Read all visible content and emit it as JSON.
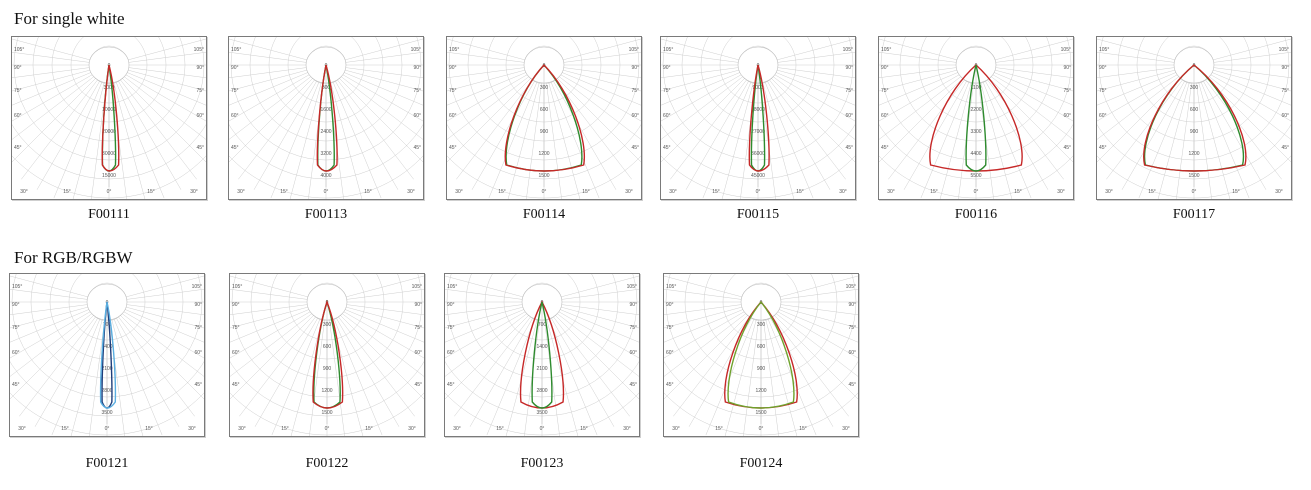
{
  "sections": [
    {
      "title": "For single white",
      "diagrams": [
        {
          "code": "F00111",
          "values": [
            "0",
            "3000",
            "10000",
            "20000",
            "30000",
            "15000"
          ],
          "curves": [
            {
              "color": "#2e8b2e",
              "w": 0.08,
              "sh": 0
            },
            {
              "color": "#c62828",
              "w": 0.1,
              "sh": 1.5
            }
          ]
        },
        {
          "code": "F00113",
          "values": [
            "0",
            "800",
            "1600",
            "2400",
            "3200",
            "4000"
          ],
          "curves": [
            {
              "color": "#2e8b2e",
              "w": 0.1,
              "sh": 0
            },
            {
              "color": "#c62828",
              "w": 0.12,
              "sh": 1.2
            }
          ]
        },
        {
          "code": "F00114",
          "values": [
            "0",
            "300",
            "600",
            "900",
            "1200",
            "1500"
          ],
          "curves": [
            {
              "color": "#2e8b2e",
              "w": 0.46,
              "sh": 0
            },
            {
              "color": "#c62828",
              "w": 0.48,
              "sh": 0.8
            }
          ]
        },
        {
          "code": "F00115",
          "values": [
            "0",
            "9000",
            "18000",
            "27000",
            "36000",
            "45000"
          ],
          "curves": [
            {
              "color": "#2e8b2e",
              "w": 0.08,
              "sh": 0
            },
            {
              "color": "#c62828",
              "w": 0.12,
              "sh": 1.2
            }
          ]
        },
        {
          "code": "F00116",
          "values": [
            "0",
            "1100",
            "2200",
            "3300",
            "4400",
            "5500"
          ],
          "curves": [
            {
              "color": "#c62828",
              "w": 0.56,
              "sh": 0
            },
            {
              "color": "#2e8b2e",
              "w": 0.12,
              "sh": 0
            }
          ]
        },
        {
          "code": "F00117",
          "values": [
            "0",
            "300",
            "600",
            "900",
            "1200",
            "1500"
          ],
          "curves": [
            {
              "color": "#2e8b2e",
              "w": 0.6,
              "sh": 0
            },
            {
              "color": "#c62828",
              "w": 0.62,
              "sh": 0.8
            }
          ]
        }
      ]
    },
    {
      "title": "For RGB/RGBW",
      "diagrams": [
        {
          "code": "F00121",
          "values": [
            "0",
            "700",
            "1400",
            "2100",
            "2800",
            "3500"
          ],
          "curves": [
            {
              "color": "#1e3d7a",
              "w": 0.06,
              "sh": 0
            },
            {
              "color": "#5aaee0",
              "w": 0.09,
              "sh": 1
            }
          ]
        },
        {
          "code": "F00122",
          "values": [
            "0",
            "300",
            "600",
            "900",
            "1200",
            "1500"
          ],
          "curves": [
            {
              "color": "#2e8b2e",
              "w": 0.16,
              "sh": 0
            },
            {
              "color": "#c62828",
              "w": 0.18,
              "sh": 0.8
            }
          ]
        },
        {
          "code": "F00123",
          "values": [
            "0",
            "700",
            "1400",
            "2100",
            "2800",
            "3500"
          ],
          "curves": [
            {
              "color": "#c62828",
              "w": 0.26,
              "sh": 0
            },
            {
              "color": "#2e8b2e",
              "w": 0.12,
              "sh": 0
            }
          ]
        },
        {
          "code": "F00124",
          "values": [
            "0",
            "300",
            "600",
            "900",
            "1200",
            "1500"
          ],
          "curves": [
            {
              "color": "#c62828",
              "w": 0.44,
              "sh": 0
            },
            {
              "color": "#6ea22c",
              "w": 0.4,
              "sh": 0
            }
          ]
        }
      ]
    }
  ],
  "angle_labels": {
    "left": [
      "105°",
      "90°",
      "75°",
      "60°",
      "45°"
    ],
    "right": [
      "105°",
      "90°",
      "75°",
      "60°",
      "45°"
    ],
    "bottom": [
      "30°",
      "15°",
      "0°",
      "15°",
      "30°"
    ]
  }
}
